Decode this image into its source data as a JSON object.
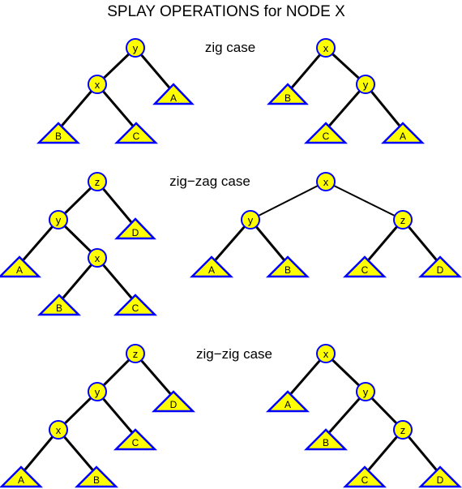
{
  "title": "SPLAY OPERATIONS for NODE X",
  "cases": {
    "zig": {
      "caption": "zig case",
      "before": {
        "n_y": "y",
        "n_x": "x",
        "t_A": "A",
        "t_B": "B",
        "t_C": "C"
      },
      "after": {
        "n_x": "x",
        "n_y": "y",
        "t_B": "B",
        "t_C": "C",
        "t_A": "A"
      }
    },
    "zigzag": {
      "caption": "zig−zag case",
      "before": {
        "n_z": "z",
        "n_y": "y",
        "n_x": "x",
        "t_D": "D",
        "t_A": "A",
        "t_B": "B",
        "t_C": "C"
      },
      "after": {
        "n_x": "x",
        "n_y": "y",
        "n_z": "z",
        "t_A": "A",
        "t_B": "B",
        "t_C": "C",
        "t_D": "D"
      }
    },
    "zigzig": {
      "caption": "zig−zig case",
      "before": {
        "n_z": "z",
        "n_y": "y",
        "n_x": "x",
        "t_D": "D",
        "t_C": "C",
        "t_A": "A",
        "t_B": "B"
      },
      "after": {
        "n_x": "x",
        "n_y": "y",
        "n_z": "z",
        "t_A": "A",
        "t_B": "B",
        "t_C": "C",
        "t_D": "D"
      }
    }
  },
  "colors": {
    "fill": "#ffff00",
    "outline": "#0000ff",
    "edge": "#000000"
  }
}
